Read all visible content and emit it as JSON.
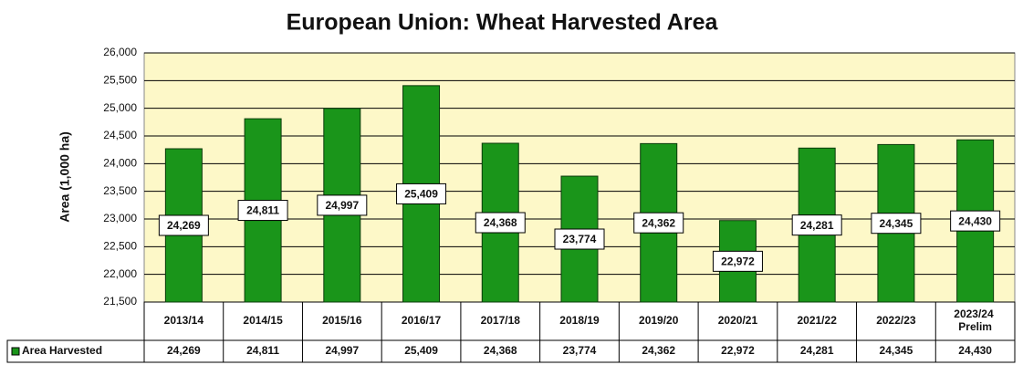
{
  "chart_data": {
    "type": "bar",
    "title": "European Union: Wheat Harvested Area",
    "y_label": "Area (1,000 ha)",
    "categories": [
      "2013/14",
      "2014/15",
      "2015/16",
      "2016/17",
      "2017/18",
      "2018/19",
      "2019/20",
      "2020/21",
      "2021/22",
      "2022/23",
      "2023/24 Prelim"
    ],
    "series": [
      {
        "name": "Area Harvested",
        "color": "#1a951a",
        "values": [
          24269,
          24811,
          24997,
          25409,
          24368,
          23774,
          24362,
          22972,
          24281,
          24345,
          24430
        ],
        "value_labels": [
          "24,269",
          "24,811",
          "24,997",
          "25,409",
          "24,368",
          "23,774",
          "24,362",
          "22,972",
          "24,281",
          "24,345",
          "24,430"
        ]
      }
    ],
    "ylim": [
      21500,
      26000
    ],
    "yticks": [
      {
        "value": 21500,
        "label": "21,500"
      },
      {
        "value": 22000,
        "label": "22,000"
      },
      {
        "value": 22500,
        "label": "22,500"
      },
      {
        "value": 23000,
        "label": "23,000"
      },
      {
        "value": 23500,
        "label": "23,500"
      },
      {
        "value": 24000,
        "label": "24,000"
      },
      {
        "value": 24500,
        "label": "24,500"
      },
      {
        "value": 25000,
        "label": "25,000"
      },
      {
        "value": 25500,
        "label": "25,500"
      },
      {
        "value": 26000,
        "label": "26,000"
      }
    ],
    "grid": true,
    "data_table": true
  }
}
